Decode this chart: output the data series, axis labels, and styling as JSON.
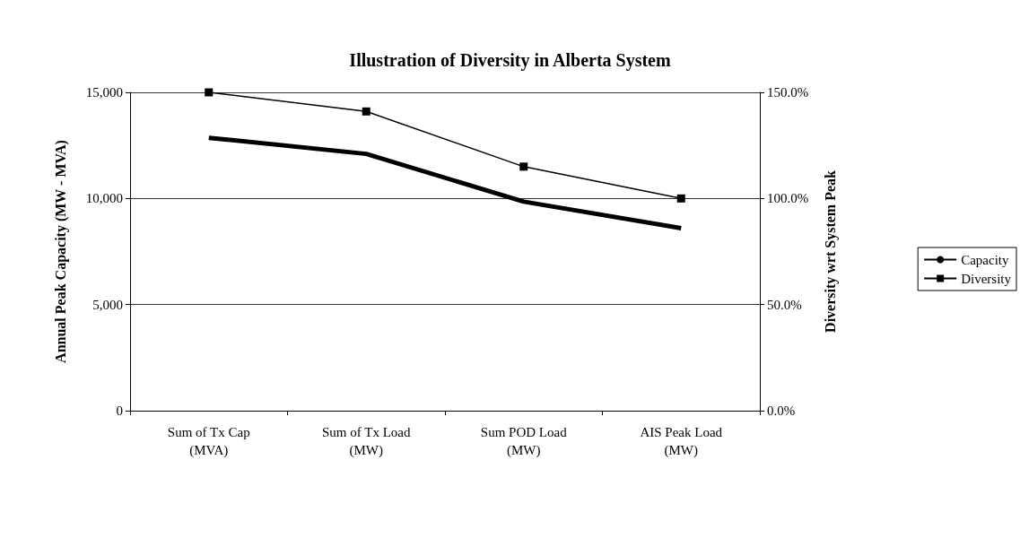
{
  "chart_data": {
    "type": "line",
    "title": "Illustration of Diversity in Alberta System",
    "ylabel": "Annual Peak Capacity (MW - MVA)",
    "y2label": "Diversity wrt System Peak",
    "categories": [
      "Sum of Tx Cap\n(MVA)",
      "Sum of Tx Load\n(MW)",
      "Sum POD Load\n(MW)",
      "AIS Peak Load\n(MW)"
    ],
    "series": [
      {
        "name": "Capacity",
        "color": "#000000",
        "values": [
          12860,
          12100,
          9850,
          8600
        ],
        "marker": "none"
      },
      {
        "name": "Diversity",
        "color": "#000000",
        "values": [
          150,
          141,
          115,
          100
        ],
        "axis": "y2",
        "marker": "square"
      }
    ],
    "ylim": [
      0,
      15000
    ],
    "yticks": [
      {
        "value": 0,
        "label": "0"
      },
      {
        "value": 5000,
        "label": "5,000"
      },
      {
        "value": 10000,
        "label": "10,000"
      },
      {
        "value": 15000,
        "label": "15,000"
      }
    ],
    "y2lim": [
      0,
      150
    ],
    "y2ticks": [
      {
        "value": 0,
        "label": "0.0%"
      },
      {
        "value": 50,
        "label": "50.0%"
      },
      {
        "value": 100,
        "label": "100.0%"
      },
      {
        "value": 150,
        "label": "150.0%"
      }
    ],
    "grid": "y",
    "legend": "right"
  }
}
